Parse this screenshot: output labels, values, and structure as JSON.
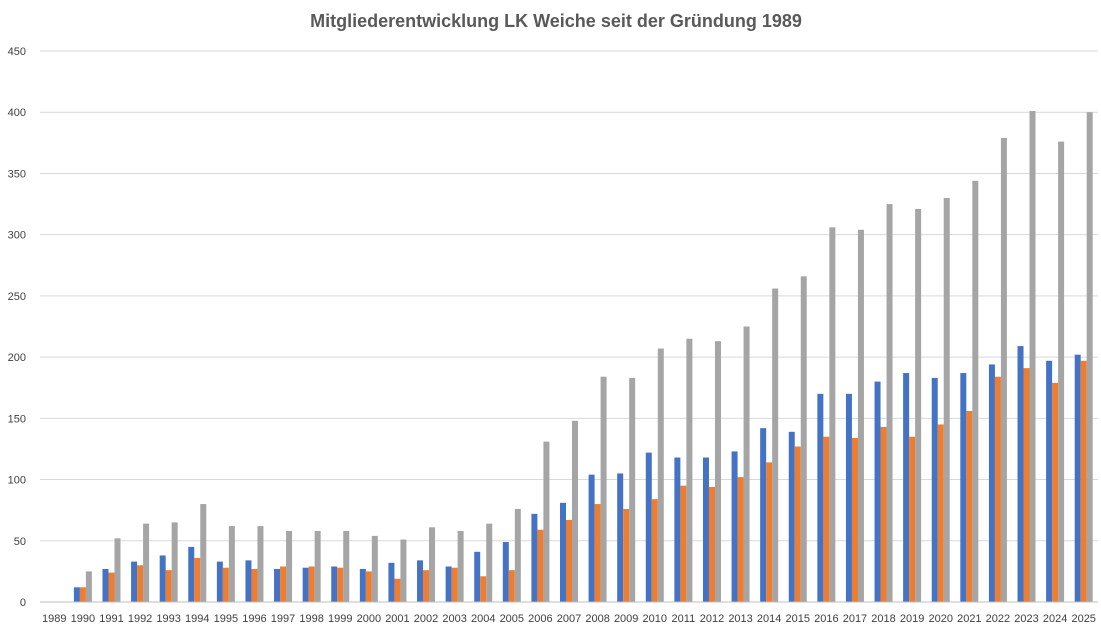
{
  "chart_data": {
    "type": "bar",
    "title": "Mitgliederentwicklung LK Weiche seit der Gründung 1989",
    "xlabel": "",
    "ylabel": "",
    "ylim": [
      0,
      450
    ],
    "yticks": [
      "0",
      "50",
      "100",
      "150",
      "200",
      "250",
      "300",
      "350",
      "400",
      "450"
    ],
    "grid": true,
    "legend": "none",
    "categories": [
      "1989",
      "1990",
      "1991",
      "1992",
      "1993",
      "1994",
      "1995",
      "1996",
      "1997",
      "1998",
      "1999",
      "2000",
      "2001",
      "2002",
      "2003",
      "2004",
      "2005",
      "2006",
      "2007",
      "2008",
      "2009",
      "2010",
      "2011",
      "2012",
      "2013",
      "2014",
      "2015",
      "2016",
      "2017",
      "2018",
      "2019",
      "2020",
      "2021",
      "2022",
      "2023",
      "2024",
      "2025"
    ],
    "series": [
      {
        "color": "#4472c4",
        "values": [
          0,
          12,
          27,
          33,
          38,
          45,
          33,
          34,
          27,
          28,
          29,
          27,
          32,
          34,
          29,
          41,
          49,
          72,
          81,
          104,
          105,
          122,
          118,
          118,
          123,
          142,
          139,
          170,
          170,
          180,
          187,
          183,
          187,
          194,
          209,
          197,
          202
        ]
      },
      {
        "color": "#ed7d31",
        "values": [
          0,
          12,
          24,
          30,
          26,
          36,
          28,
          27,
          29,
          29,
          28,
          25,
          19,
          26,
          28,
          21,
          26,
          59,
          67,
          80,
          76,
          84,
          95,
          94,
          102,
          114,
          127,
          135,
          134,
          143,
          135,
          145,
          156,
          184,
          191,
          179,
          197
        ]
      },
      {
        "color": "#a5a5a5",
        "values": [
          0,
          25,
          52,
          64,
          65,
          80,
          62,
          62,
          58,
          58,
          58,
          54,
          51,
          61,
          58,
          64,
          76,
          131,
          148,
          184,
          183,
          207,
          215,
          213,
          225,
          256,
          266,
          306,
          304,
          325,
          321,
          330,
          344,
          379,
          401,
          376,
          400
        ]
      }
    ]
  }
}
